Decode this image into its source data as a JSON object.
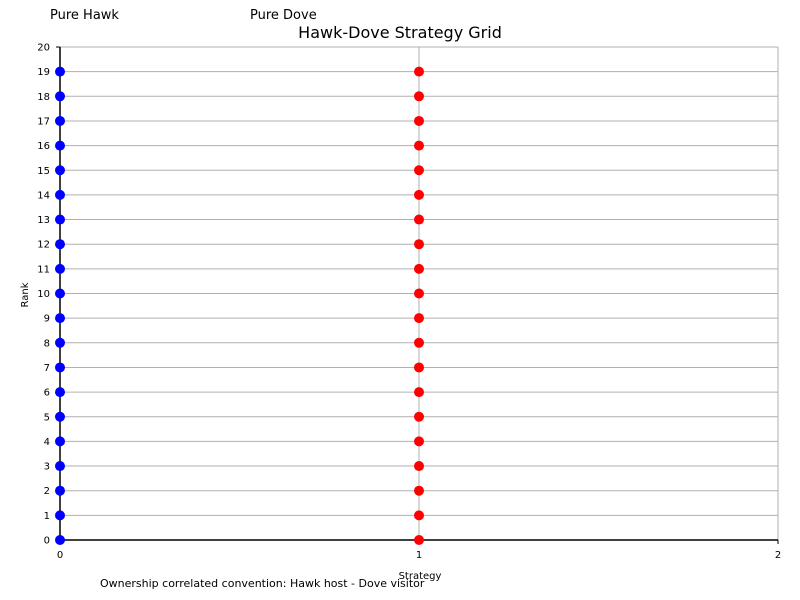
{
  "header": {
    "left_label": "Pure Hawk",
    "right_label": "Pure Dove"
  },
  "footnote": "Ownership correlated convention: Hawk host - Dove visitor",
  "chart_data": {
    "type": "scatter",
    "title": "Hawk-Dove Strategy Grid",
    "xlabel": "Strategy",
    "ylabel": "Rank",
    "xlim": [
      0,
      2
    ],
    "ylim": [
      0,
      20
    ],
    "xticks": [
      0,
      1,
      2
    ],
    "yticks": [
      0,
      1,
      2,
      3,
      4,
      5,
      6,
      7,
      8,
      9,
      10,
      11,
      12,
      13,
      14,
      15,
      16,
      17,
      18,
      19,
      20
    ],
    "grid": true,
    "series": [
      {
        "color": "#0000ff",
        "x": [
          0,
          0,
          0,
          0,
          0,
          0,
          0,
          0,
          0,
          0,
          0,
          0,
          0,
          0,
          0,
          0,
          0,
          0,
          0,
          0
        ],
        "y": [
          0,
          1,
          2,
          3,
          4,
          5,
          6,
          7,
          8,
          9,
          10,
          11,
          12,
          13,
          14,
          15,
          16,
          17,
          18,
          19
        ]
      },
      {
        "color": "#ff0000",
        "x": [
          1,
          1,
          1,
          1,
          1,
          1,
          1,
          1,
          1,
          1,
          1,
          1,
          1,
          1,
          1,
          1,
          1,
          1,
          1,
          1
        ],
        "y": [
          0,
          1,
          2,
          3,
          4,
          5,
          6,
          7,
          8,
          9,
          10,
          11,
          12,
          13,
          14,
          15,
          16,
          17,
          18,
          19
        ]
      }
    ]
  }
}
